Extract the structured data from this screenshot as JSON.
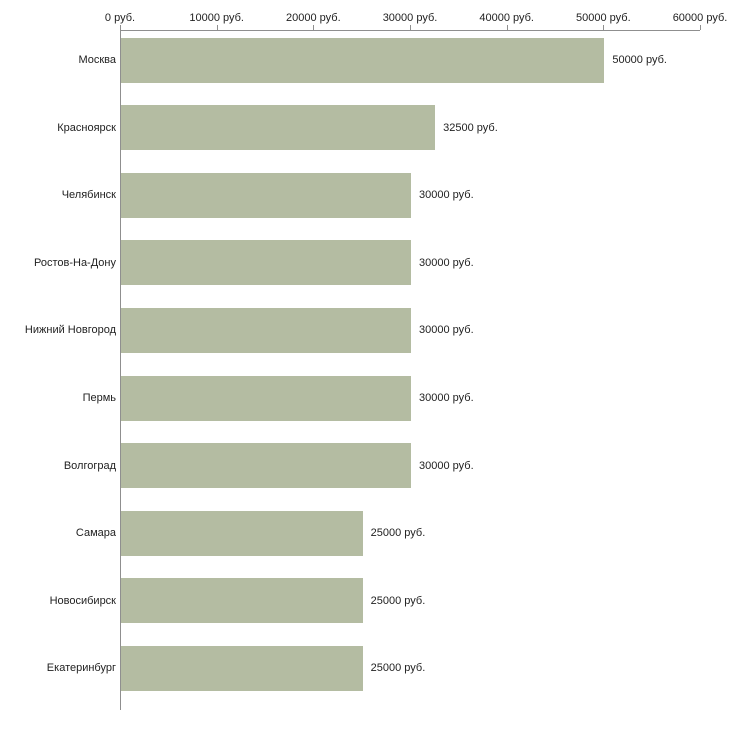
{
  "chart_data": {
    "type": "bar",
    "orientation": "horizontal",
    "title": "",
    "xlabel": "",
    "ylabel": "",
    "xlim": [
      0,
      60000
    ],
    "grid": false,
    "legend": false,
    "bar_color": "#b4bca2",
    "axis_color": "#8f8f8f",
    "categories": [
      "Москва",
      "Красноярск",
      "Челябинск",
      "Ростов-На-Дону",
      "Нижний Новгород",
      "Пермь",
      "Волгоград",
      "Самара",
      "Новосибирск",
      "Екатеринбург"
    ],
    "values": [
      50000,
      32500,
      30000,
      30000,
      30000,
      30000,
      30000,
      25000,
      25000,
      25000
    ],
    "value_labels": [
      "50000 руб.",
      "32500 руб.",
      "30000 руб.",
      "30000 руб.",
      "30000 руб.",
      "30000 руб.",
      "30000 руб.",
      "25000 руб.",
      "25000 руб.",
      "25000 руб."
    ],
    "x_ticks": [
      0,
      10000,
      20000,
      30000,
      40000,
      50000,
      60000
    ],
    "x_tick_labels": [
      "0 руб.",
      "10000 руб.",
      "20000 руб.",
      "30000 руб.",
      "40000 руб.",
      "50000 руб.",
      "60000 руб."
    ]
  }
}
